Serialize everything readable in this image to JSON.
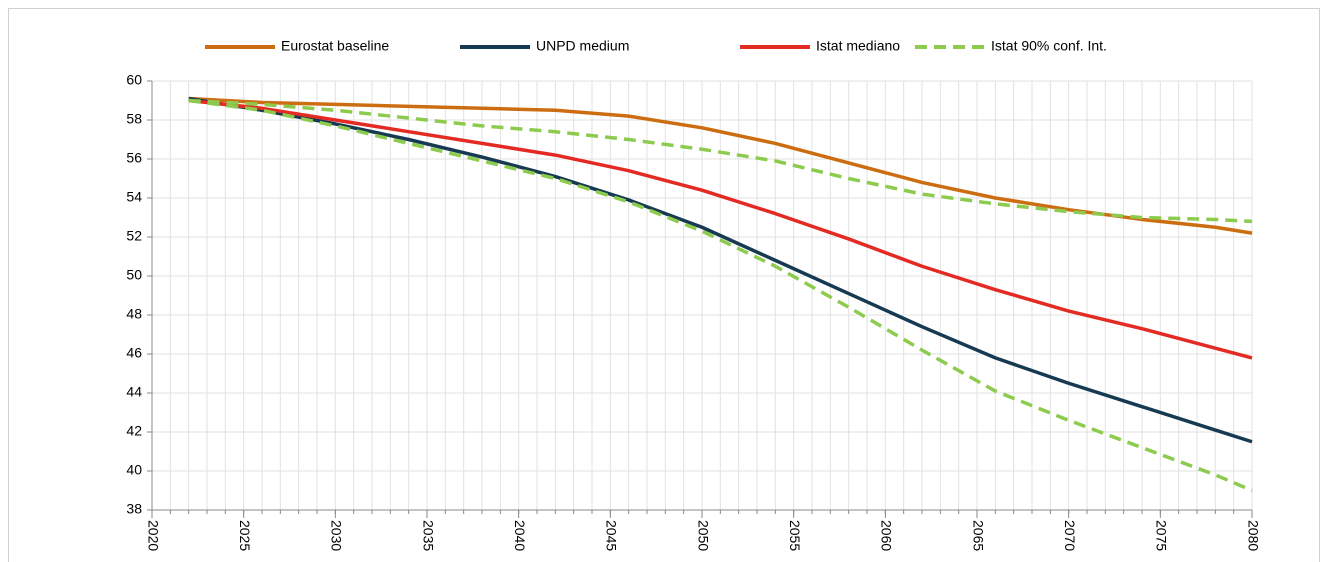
{
  "chart_data": {
    "type": "line",
    "x": [
      2022,
      2026,
      2030,
      2034,
      2038,
      2042,
      2046,
      2050,
      2054,
      2058,
      2062,
      2066,
      2070,
      2074,
      2078,
      2080
    ],
    "series": [
      {
        "name": "Eurostat baseline",
        "color": "#cc6d12",
        "values": [
          59.1,
          58.9,
          58.8,
          58.7,
          58.6,
          58.5,
          58.2,
          57.6,
          56.8,
          55.8,
          54.8,
          54.0,
          53.4,
          52.9,
          52.5,
          52.2
        ]
      },
      {
        "name": "UNPD medium",
        "color": "#163a52",
        "values": [
          59.1,
          58.5,
          57.8,
          57.0,
          56.1,
          55.1,
          53.9,
          52.5,
          50.8,
          49.1,
          47.4,
          45.8,
          44.5,
          43.3,
          42.1,
          41.5
        ]
      },
      {
        "name": "Istat mediano",
        "color": "#e32b24",
        "values": [
          59.0,
          58.6,
          58.0,
          57.4,
          56.8,
          56.2,
          55.4,
          54.4,
          53.2,
          51.9,
          50.5,
          49.3,
          48.2,
          47.3,
          46.3,
          45.8
        ]
      },
      {
        "name": "Istat 90% conf. Int.",
        "color": "#8ccb4e",
        "dashed": true,
        "upper": [
          59.0,
          58.8,
          58.5,
          58.1,
          57.7,
          57.4,
          57.0,
          56.5,
          55.9,
          55.0,
          54.2,
          53.7,
          53.3,
          53.0,
          52.9,
          52.8
        ],
        "lower": [
          59.0,
          58.5,
          57.7,
          56.8,
          55.9,
          55.0,
          53.8,
          52.3,
          50.5,
          48.4,
          46.2,
          44.1,
          42.6,
          41.2,
          39.8,
          39.0
        ]
      }
    ],
    "xlim": [
      2020,
      2080
    ],
    "xticks": [
      2020,
      2025,
      2030,
      2035,
      2040,
      2045,
      2050,
      2055,
      2060,
      2065,
      2070,
      2075,
      2080
    ],
    "xgrid_step": 1,
    "ylim": [
      38,
      60
    ],
    "yticks": [
      38,
      40,
      42,
      44,
      46,
      48,
      50,
      52,
      54,
      56,
      58,
      60
    ],
    "grid": true,
    "legend": "top"
  }
}
